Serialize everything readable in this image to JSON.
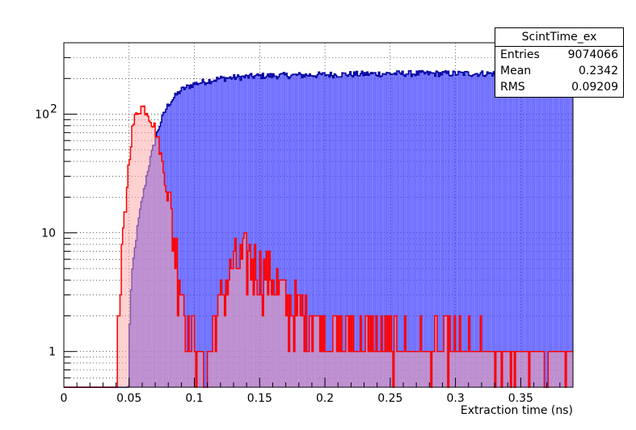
{
  "chart_data": {
    "type": "histogram",
    "title": "",
    "xlabel": "Extraction time (ns)",
    "ylabel": "",
    "xlim": [
      0,
      0.39
    ],
    "ylim": [
      0.5,
      400
    ],
    "yscale": "log",
    "grid": true,
    "x_ticks": [
      "0",
      "0.05",
      "0.1",
      "0.15",
      "0.2",
      "0.25",
      "0.3",
      "0.35"
    ],
    "y_ticks": [
      {
        "value": 1,
        "label": "1"
      },
      {
        "value": 10,
        "label": "10"
      },
      {
        "value": 100,
        "label": "10",
        "exp": "2"
      }
    ],
    "bin_width": 0.001,
    "series": [
      {
        "color": "#0000a0",
        "fill": "#4040ff",
        "profile": [
          [
            0.0,
            0
          ],
          [
            0.049,
            0
          ],
          [
            0.05,
            1
          ],
          [
            0.052,
            4
          ],
          [
            0.055,
            8
          ],
          [
            0.058,
            14
          ],
          [
            0.062,
            24
          ],
          [
            0.066,
            40
          ],
          [
            0.07,
            60
          ],
          [
            0.075,
            90
          ],
          [
            0.08,
            120
          ],
          [
            0.085,
            140
          ],
          [
            0.09,
            160
          ],
          [
            0.1,
            180
          ],
          [
            0.12,
            200
          ],
          [
            0.15,
            210
          ],
          [
            0.2,
            215
          ],
          [
            0.25,
            220
          ],
          [
            0.3,
            220
          ],
          [
            0.35,
            220
          ],
          [
            0.39,
            220
          ]
        ]
      },
      {
        "color": "#ff0000",
        "fill": "#ffaaaa",
        "profile": [
          [
            0.0,
            0
          ],
          [
            0.04,
            0
          ],
          [
            0.041,
            1
          ],
          [
            0.044,
            3
          ],
          [
            0.047,
            12
          ],
          [
            0.05,
            40
          ],
          [
            0.053,
            80
          ],
          [
            0.057,
            110
          ],
          [
            0.06,
            115
          ],
          [
            0.063,
            110
          ],
          [
            0.066,
            95
          ],
          [
            0.07,
            75
          ],
          [
            0.073,
            55
          ],
          [
            0.076,
            35
          ],
          [
            0.08,
            18
          ],
          [
            0.085,
            8
          ],
          [
            0.09,
            3.5
          ],
          [
            0.095,
            1.5
          ],
          [
            0.1,
            1
          ],
          [
            0.11,
            0.5
          ],
          [
            0.12,
            2.5
          ],
          [
            0.13,
            5
          ],
          [
            0.14,
            6
          ],
          [
            0.15,
            5
          ],
          [
            0.16,
            4
          ],
          [
            0.17,
            2.5
          ],
          [
            0.18,
            2
          ],
          [
            0.2,
            1.5
          ],
          [
            0.25,
            1
          ],
          [
            0.3,
            1
          ],
          [
            0.35,
            0.8
          ],
          [
            0.39,
            0.8
          ]
        ]
      }
    ]
  },
  "stats": {
    "title": "ScintTime_ex",
    "rows": [
      {
        "label": "Entries",
        "value": "9074066"
      },
      {
        "label": "Mean",
        "value": "0.2342"
      },
      {
        "label": "RMS",
        "value": "0.09209"
      }
    ]
  }
}
